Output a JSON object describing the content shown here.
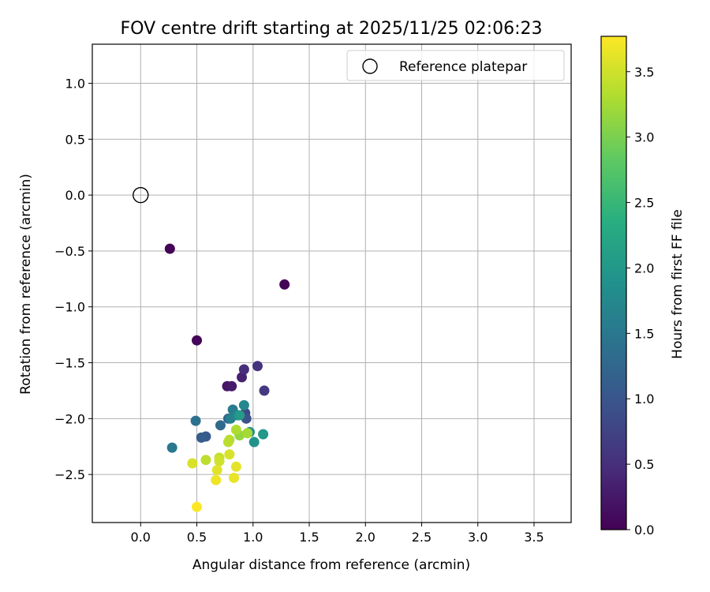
{
  "chart_data": {
    "type": "scatter",
    "title": "FOV centre drift starting at 2025/11/25 02:06:23",
    "xlabel": "Angular distance from reference (arcmin)",
    "ylabel": "Rotation from reference (arcmin)",
    "xlim": [
      -0.43,
      3.83
    ],
    "ylim": [
      -2.93,
      1.35
    ],
    "xticks": [
      0.0,
      0.5,
      1.0,
      1.5,
      2.0,
      2.5,
      3.0,
      3.5
    ],
    "xtick_labels": [
      "0.0",
      "0.5",
      "1.0",
      "1.5",
      "2.0",
      "2.5",
      "3.0",
      "3.5"
    ],
    "yticks": [
      1.0,
      0.5,
      0.0,
      -0.5,
      -1.0,
      -1.5,
      -2.0,
      -2.5
    ],
    "ytick_labels": [
      "1.0",
      "0.5",
      "0.0",
      "−0.5",
      "−1.0",
      "−1.5",
      "−2.0",
      "−2.5"
    ],
    "grid": true,
    "legend": {
      "position": "top-right",
      "entries": [
        "Reference platepar"
      ]
    },
    "reference_point": {
      "x": 0.0,
      "y": 0.0
    },
    "colorbar": {
      "label": "Hours from first FF file",
      "min": 0.0,
      "max": 3.77,
      "colormap": "viridis",
      "ticks": [
        0.0,
        0.5,
        1.0,
        1.5,
        2.0,
        2.5,
        3.0,
        3.5
      ],
      "tick_labels": [
        "0.0",
        "0.5",
        "1.0",
        "1.5",
        "2.0",
        "2.5",
        "3.0",
        "3.5"
      ]
    },
    "points": [
      {
        "x": 0.26,
        "y": -0.48,
        "c": 0.02
      },
      {
        "x": 1.28,
        "y": -0.8,
        "c": 0.03
      },
      {
        "x": 0.5,
        "y": -1.3,
        "c": 0.05
      },
      {
        "x": 0.77,
        "y": -1.71,
        "c": 0.22
      },
      {
        "x": 0.81,
        "y": -1.71,
        "c": 0.28
      },
      {
        "x": 0.9,
        "y": -1.63,
        "c": 0.35
      },
      {
        "x": 0.92,
        "y": -1.56,
        "c": 0.48
      },
      {
        "x": 1.04,
        "y": -1.53,
        "c": 0.55
      },
      {
        "x": 1.1,
        "y": -1.75,
        "c": 0.62
      },
      {
        "x": 0.93,
        "y": -1.95,
        "c": 0.8
      },
      {
        "x": 0.94,
        "y": -2.0,
        "c": 0.95
      },
      {
        "x": 0.58,
        "y": -2.16,
        "c": 1.05
      },
      {
        "x": 0.54,
        "y": -2.17,
        "c": 1.1
      },
      {
        "x": 0.78,
        "y": -2.0,
        "c": 1.2
      },
      {
        "x": 0.71,
        "y": -2.06,
        "c": 1.3
      },
      {
        "x": 0.49,
        "y": -2.02,
        "c": 1.4
      },
      {
        "x": 0.28,
        "y": -2.26,
        "c": 1.5
      },
      {
        "x": 0.82,
        "y": -1.92,
        "c": 1.55
      },
      {
        "x": 0.8,
        "y": -2.0,
        "c": 1.62
      },
      {
        "x": 0.86,
        "y": -1.97,
        "c": 1.7
      },
      {
        "x": 0.92,
        "y": -1.88,
        "c": 1.75
      },
      {
        "x": 0.97,
        "y": -2.12,
        "c": 1.85
      },
      {
        "x": 1.01,
        "y": -2.21,
        "c": 1.92
      },
      {
        "x": 1.09,
        "y": -2.14,
        "c": 1.98
      },
      {
        "x": 0.88,
        "y": -1.97,
        "c": 2.05
      },
      {
        "x": 0.88,
        "y": -2.15,
        "c": 3.15
      },
      {
        "x": 0.95,
        "y": -2.13,
        "c": 3.25
      },
      {
        "x": 0.85,
        "y": -2.1,
        "c": 3.3
      },
      {
        "x": 0.79,
        "y": -2.19,
        "c": 3.35
      },
      {
        "x": 0.78,
        "y": -2.21,
        "c": 3.38
      },
      {
        "x": 0.58,
        "y": -2.37,
        "c": 3.4
      },
      {
        "x": 0.7,
        "y": -2.35,
        "c": 3.45
      },
      {
        "x": 0.7,
        "y": -2.38,
        "c": 3.5
      },
      {
        "x": 0.46,
        "y": -2.4,
        "c": 3.55
      },
      {
        "x": 0.79,
        "y": -2.32,
        "c": 3.55
      },
      {
        "x": 0.68,
        "y": -2.46,
        "c": 3.6
      },
      {
        "x": 0.85,
        "y": -2.43,
        "c": 3.62
      },
      {
        "x": 0.83,
        "y": -2.53,
        "c": 3.65
      },
      {
        "x": 0.67,
        "y": -2.55,
        "c": 3.68
      },
      {
        "x": 0.5,
        "y": -2.79,
        "c": 3.76
      }
    ]
  }
}
